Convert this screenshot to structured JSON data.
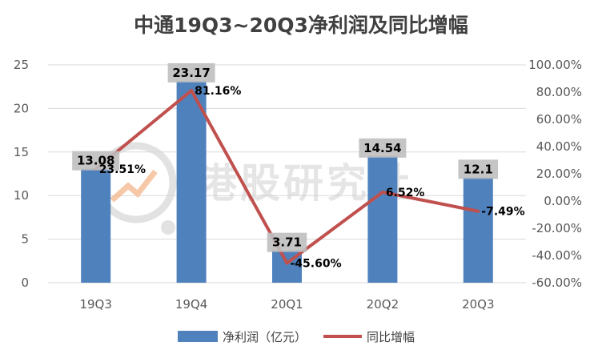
{
  "chart_data": {
    "type": "bar+line",
    "title": "中通19Q3~20Q3净利润及同比增幅",
    "categories": [
      "19Q3",
      "19Q4",
      "20Q1",
      "20Q2",
      "20Q3"
    ],
    "series": [
      {
        "name": "净利润（亿元）",
        "type": "bar",
        "axis": "left",
        "values": [
          13.08,
          23.17,
          3.71,
          14.54,
          12.1
        ],
        "labels": [
          "13.08",
          "23.17",
          "3.71",
          "14.54",
          "12.1"
        ],
        "color": "#4f81bd"
      },
      {
        "name": "同比增幅",
        "type": "line",
        "axis": "right",
        "values": [
          23.51,
          81.16,
          -45.6,
          6.52,
          -7.49
        ],
        "labels": [
          "23.51%",
          "81.16%",
          "-45.60%",
          "6.52%",
          "-7.49%"
        ],
        "color": "#c0504d"
      }
    ],
    "y_left": {
      "min": 0,
      "max": 25,
      "step": 5,
      "ticks": [
        "0",
        "5",
        "10",
        "15",
        "20",
        "25"
      ]
    },
    "y_right": {
      "min": -60,
      "max": 100,
      "step": 20,
      "ticks": [
        "-60.00%",
        "-40.00%",
        "-20.00%",
        "0.00%",
        "20.00%",
        "40.00%",
        "60.00%",
        "80.00%",
        "100.00%"
      ]
    },
    "grid": true,
    "legend_position": "bottom"
  },
  "watermark": {
    "text": "港股研究社"
  },
  "colors": {
    "bar": "#4f81bd",
    "line": "#c0504d",
    "grid": "#d9d9d9",
    "label_box": "#bfbfbf"
  }
}
